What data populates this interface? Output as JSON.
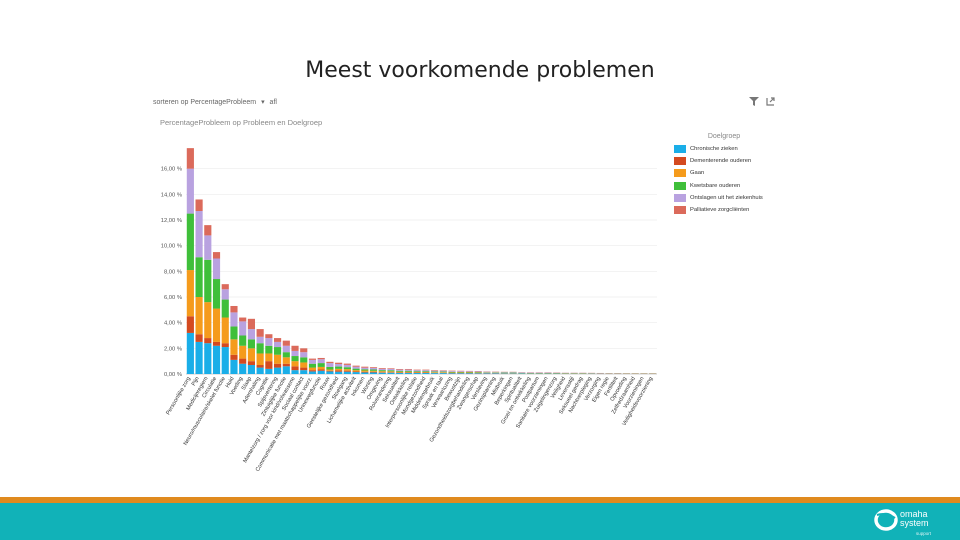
{
  "slide": {
    "title": "Meest voorkomende problemen"
  },
  "toolbar": {
    "sort_text": "sorteren op PercentageProbleem",
    "sort_arrow": "▾",
    "sort_dir": "afl"
  },
  "tools": {
    "filter_icon": "filter-icon",
    "expand_icon": "expand-icon"
  },
  "logo": {
    "line1": "omaha",
    "line2": "system",
    "sub": "support",
    "icon": "omaha-logo-icon"
  },
  "colors": {
    "orange_bar": "#e08a1e",
    "teal_bar": "#11b2b8"
  },
  "chart_data": {
    "type": "bar",
    "stacked": true,
    "subtitle": "PercentageProbleem op Probleem en Doelgroep",
    "legend_title": "Doelgroep",
    "legend_position": "right",
    "ylim": [
      0,
      18
    ],
    "yticks": [
      "0,00 %",
      "2,00 %",
      "4,00 %",
      "6,00 %",
      "8,00 %",
      "10,00 %",
      "12,00 %",
      "14,00 %",
      "16,00 %"
    ],
    "grid": true,
    "categories": [
      "Persoonlijke zorg",
      "Pijn",
      "Medicijnregiem",
      "Circulatie",
      "Neuro/musculaire/skelet functie",
      "Huid",
      "Voeding",
      "Slaap",
      "Ademhaling",
      "Cognitie",
      "Spijsvertering",
      "Zintuiglijke functie",
      "Mantelzorg / zorg voor kind/volwassene",
      "Sociaal contact",
      "Communicatie met maatschappelijke voorz.",
      "Urinewegfunctie",
      "Rouw",
      "Geestelijke gezondheid",
      "Stoelgang",
      "Lichamelijke activiteit",
      "Inkomen",
      "Woning",
      "Omgeving",
      "Rolverandering",
      "Seksualiteit",
      "Ontwikkeling",
      "Interpersoonlijke relatie",
      "Mondgezondheid",
      "Middelengebruik",
      "Spraak en taal",
      "Verwaarlozing",
      "Bewustzijn",
      "Gezondheidszorgbehandeling",
      "Zwangerschap",
      "Verslaving",
      "Gezinsplanning",
      "Misbruik",
      "Beperkingen",
      "Spiritualiteit",
      "Groei en ontwikkeling",
      "Postpartum",
      "Sanitaire voorzieningen",
      "Zuigelingenzorg",
      "Veiligheid",
      "Levensstijl",
      "Seksueel gedrag",
      "Nachtverpleging",
      "Verzorging",
      "Eigen regie",
      "Fertiliteit",
      "Opvoeding",
      "Zelfredzaamheid",
      "Voorzieningen",
      "Veiligheidsvoorziening"
    ],
    "series": [
      {
        "name": "Chronische zieken",
        "color": "#1aaee8",
        "values": [
          3.2,
          2.5,
          2.4,
          2.2,
          2.1,
          1.1,
          0.8,
          0.7,
          0.5,
          0.4,
          0.5,
          0.6,
          0.3,
          0.3,
          0.2,
          0.25,
          0.2,
          0.18,
          0.18,
          0.15,
          0.12,
          0.12,
          0.1,
          0.1,
          0.09,
          0.09,
          0.08,
          0.08,
          0.07,
          0.07,
          0.06,
          0.06,
          0.06,
          0.05,
          0.05,
          0.05,
          0.04,
          0.04,
          0.04,
          0.03,
          0.03,
          0.03,
          0.03,
          0.02,
          0.02,
          0.02,
          0.02,
          0.02,
          0.01,
          0.01,
          0.01,
          0.01,
          0.01,
          0.01
        ]
      },
      {
        "name": "Dementerende ouderen",
        "color": "#d44a1f",
        "values": [
          1.3,
          0.6,
          0.4,
          0.3,
          0.3,
          0.4,
          0.4,
          0.3,
          0.2,
          0.6,
          0.3,
          0.2,
          0.3,
          0.2,
          0.1,
          0.1,
          0.05,
          0.1,
          0.08,
          0.05,
          0.05,
          0.05,
          0.04,
          0.04,
          0.03,
          0.03,
          0.03,
          0.03,
          0.02,
          0.02,
          0.02,
          0.02,
          0.02,
          0.02,
          0.02,
          0.02,
          0.01,
          0.01,
          0.01,
          0.01,
          0.01,
          0.01,
          0.01,
          0.01,
          0.01,
          0.01,
          0.01,
          0.01,
          0.01,
          0.01,
          0.01,
          0.01,
          0.01,
          0.01
        ]
      },
      {
        "name": "Gaan",
        "color": "#f59b1c",
        "values": [
          3.6,
          2.9,
          2.8,
          2.6,
          2.0,
          1.2,
          1.0,
          1.0,
          0.9,
          0.6,
          0.7,
          0.5,
          0.4,
          0.4,
          0.2,
          0.2,
          0.1,
          0.12,
          0.12,
          0.1,
          0.1,
          0.08,
          0.08,
          0.07,
          0.06,
          0.06,
          0.05,
          0.05,
          0.05,
          0.05,
          0.04,
          0.04,
          0.04,
          0.04,
          0.03,
          0.03,
          0.03,
          0.03,
          0.02,
          0.02,
          0.02,
          0.02,
          0.02,
          0.02,
          0.02,
          0.02,
          0.01,
          0.01,
          0.01,
          0.01,
          0.01,
          0.01,
          0.01,
          0.01
        ]
      },
      {
        "name": "Kwetsbare ouderen",
        "color": "#3fbf3a",
        "values": [
          4.4,
          3.1,
          3.3,
          2.3,
          1.4,
          1.0,
          0.8,
          0.7,
          0.8,
          0.6,
          0.6,
          0.4,
          0.4,
          0.4,
          0.3,
          0.3,
          0.2,
          0.18,
          0.15,
          0.12,
          0.1,
          0.1,
          0.08,
          0.08,
          0.07,
          0.07,
          0.06,
          0.06,
          0.05,
          0.05,
          0.05,
          0.04,
          0.04,
          0.04,
          0.03,
          0.03,
          0.03,
          0.03,
          0.02,
          0.02,
          0.02,
          0.02,
          0.02,
          0.02,
          0.02,
          0.02,
          0.02,
          0.01,
          0.01,
          0.01,
          0.01,
          0.01,
          0.01,
          0.01
        ]
      },
      {
        "name": "Ontslagen uit het ziekenhuis",
        "color": "#b9a2e0",
        "values": [
          3.5,
          3.6,
          1.9,
          1.6,
          0.8,
          1.1,
          1.1,
          0.8,
          0.5,
          0.6,
          0.4,
          0.5,
          0.4,
          0.4,
          0.3,
          0.3,
          0.3,
          0.2,
          0.18,
          0.15,
          0.12,
          0.12,
          0.1,
          0.1,
          0.09,
          0.09,
          0.08,
          0.08,
          0.07,
          0.07,
          0.06,
          0.06,
          0.05,
          0.05,
          0.05,
          0.04,
          0.04,
          0.04,
          0.03,
          0.03,
          0.03,
          0.03,
          0.02,
          0.02,
          0.02,
          0.02,
          0.02,
          0.02,
          0.02,
          0.02,
          0.01,
          0.01,
          0.01,
          0.01
        ]
      },
      {
        "name": "Palliatieve zorgcliënten",
        "color": "#db6a5b",
        "values": [
          1.6,
          0.9,
          0.8,
          0.5,
          0.4,
          0.5,
          0.3,
          0.8,
          0.6,
          0.3,
          0.3,
          0.4,
          0.4,
          0.3,
          0.1,
          0.1,
          0.1,
          0.1,
          0.1,
          0.08,
          0.08,
          0.06,
          0.06,
          0.05,
          0.05,
          0.05,
          0.04,
          0.04,
          0.04,
          0.03,
          0.03,
          0.03,
          0.03,
          0.03,
          0.02,
          0.02,
          0.02,
          0.02,
          0.02,
          0.02,
          0.02,
          0.02,
          0.02,
          0.01,
          0.01,
          0.01,
          0.01,
          0.01,
          0.01,
          0.01,
          0.01,
          0.01,
          0.01,
          0.01
        ]
      }
    ]
  }
}
